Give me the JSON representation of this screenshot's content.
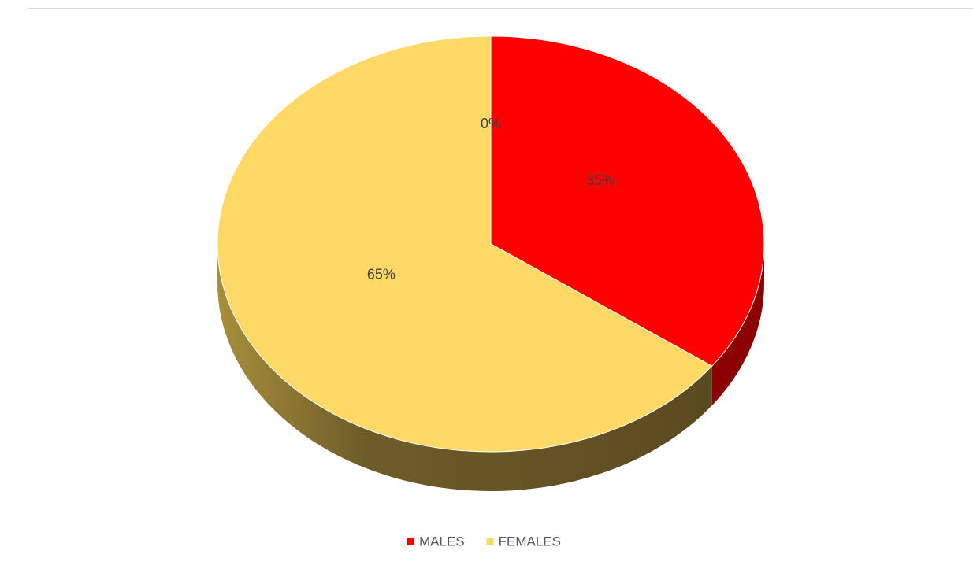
{
  "chart_data": {
    "type": "pie",
    "categories": [
      "MALES",
      "FEMALES",
      null
    ],
    "values": [
      35,
      65,
      0
    ],
    "value_labels": [
      "35%",
      "65%",
      "0%"
    ],
    "colors": [
      "#ff0000",
      "#ffd966"
    ],
    "legend": "bottom"
  }
}
